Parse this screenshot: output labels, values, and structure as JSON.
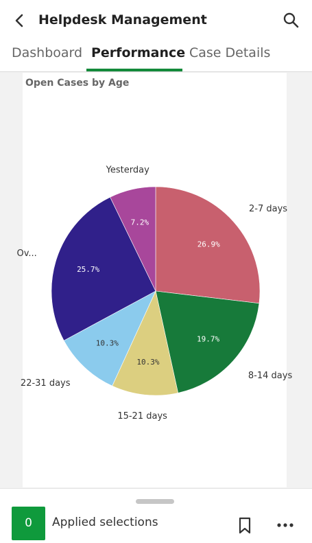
{
  "header": {
    "title": "Helpdesk Management",
    "back_icon": "chevron-left-icon",
    "search_icon": "search-icon"
  },
  "tabs": [
    {
      "label": "Dashboard",
      "active": false
    },
    {
      "label": "Performance",
      "active": true
    },
    {
      "label": "Case Details",
      "active": false
    }
  ],
  "colors": {
    "accent": "#138a3a",
    "badge": "#0f9a3c"
  },
  "chart_data": {
    "type": "pie",
    "title": "Open Cases by Age",
    "slices": [
      {
        "label": "2-7 days",
        "value": 26.9,
        "value_label": "26.9%",
        "color": "#c8606e"
      },
      {
        "label": "8-14 days",
        "value": 19.7,
        "value_label": "19.7%",
        "color": "#177a3a"
      },
      {
        "label": "15-21 days",
        "value": 10.3,
        "value_label": "10.3%",
        "color": "#dccf80"
      },
      {
        "label": "22-31 days",
        "value": 10.3,
        "value_label": "10.3%",
        "color": "#8bcbed"
      },
      {
        "label": "Ov...",
        "value": 25.7,
        "value_label": "25.7%",
        "color": "#30208a"
      },
      {
        "label": "Yesterday",
        "value": 7.2,
        "value_label": "7.2%",
        "color": "#a8479b"
      }
    ]
  },
  "bottom_bar": {
    "selection_count": "0",
    "label": "Applied selections",
    "bookmark_icon": "bookmark-icon",
    "more_icon": "more-horizontal-icon"
  }
}
